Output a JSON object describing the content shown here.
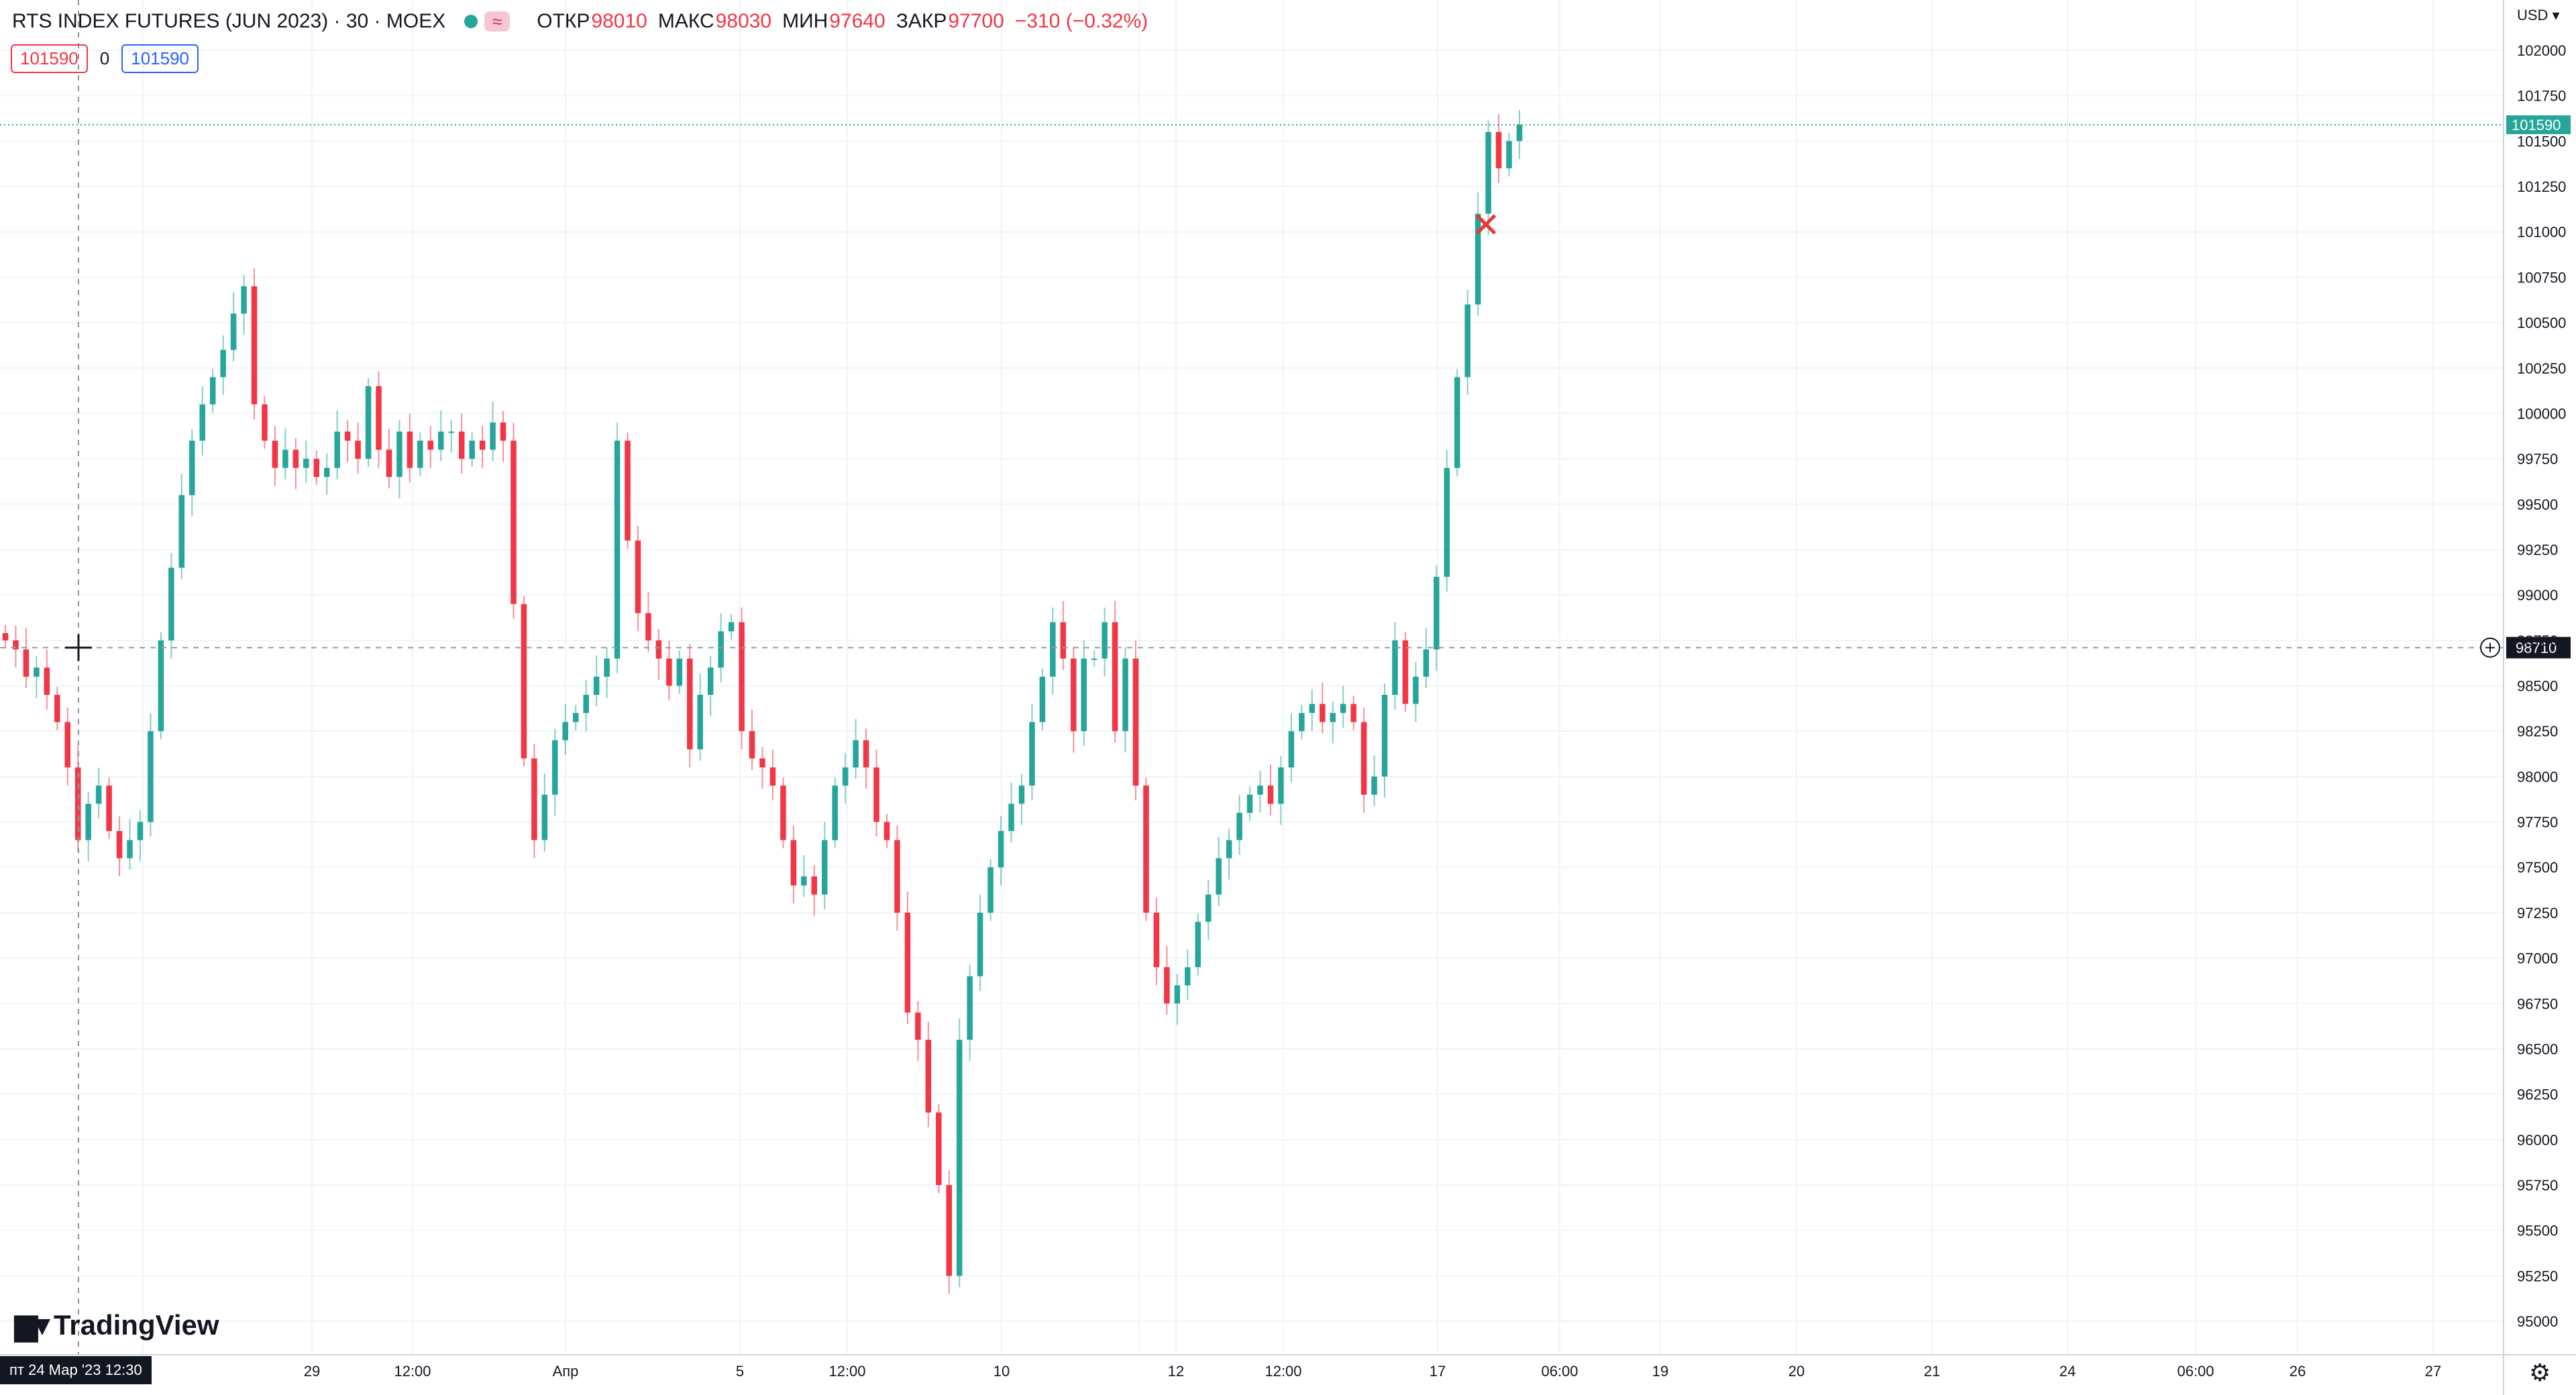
{
  "legend": {
    "symbol": "RTS INDEX FUTURES (JUN 2023) · 30 · MOEX",
    "wave_icon": "≈",
    "open_label": "ОТКР",
    "open": "98010",
    "high_label": "МАКС",
    "high": "98030",
    "low_label": "МИН",
    "low": "97640",
    "close_label": "ЗАКР",
    "close": "97700",
    "change": "−310 (−0.32%)"
  },
  "price_boxes": {
    "left": "101590",
    "middle": "0",
    "right": "101590"
  },
  "currency": "USD ▾",
  "logo_text": "TradingView",
  "crosshair_date": "пт 24 Мар '23   12:30",
  "gear_icon": "⚙",
  "colors": {
    "up": "#26a69a",
    "down": "#f23645",
    "grid": "#f0f3fa",
    "last_price": "#26a69a",
    "crosshair_label": "#131722"
  },
  "chart_data": {
    "type": "candlestick",
    "interval": "30",
    "y_axis_ticks": [
      95000,
      95250,
      95500,
      95750,
      96000,
      96250,
      96500,
      96750,
      97000,
      97250,
      97500,
      97750,
      98000,
      98250,
      98500,
      98750,
      99000,
      99250,
      99500,
      99750,
      100000,
      100250,
      100500,
      100750,
      101000,
      101250,
      101500,
      101750,
      102000
    ],
    "ylim": [
      94910,
      102150
    ],
    "x_axis_labels": [
      "29",
      "12:00",
      "Апр",
      "5",
      "12:00",
      "10",
      "12",
      "12:00",
      "17",
      "06:00",
      "19",
      "20",
      "21",
      "24",
      "06:00",
      "26",
      "27"
    ],
    "last_price": 101590,
    "crosshair_price": 98710,
    "marker": {
      "symbol": "✕",
      "price": 101030
    },
    "series": [
      {
        "name": "close",
        "values": [
          98750,
          98700,
          98550,
          98600,
          98450,
          98300,
          98050,
          97650,
          97850,
          97950,
          97700,
          97550,
          97650,
          97750,
          98250,
          98750,
          99150,
          99550,
          99850,
          100050,
          100200,
          100350,
          100550,
          100700,
          100050,
          99850,
          99700,
          99800,
          99700,
          99750,
          99650,
          99700,
          99900,
          99850,
          99750,
          100150,
          99800,
          99650,
          99900,
          99700,
          99850,
          99800,
          99900,
          99900,
          99750,
          99850,
          99800,
          99950,
          99850,
          98950,
          98100,
          97650,
          97900,
          98200,
          98300,
          98350,
          98450,
          98550,
          98650,
          99850,
          99300,
          98900,
          98750,
          98650,
          98500,
          98650,
          98150,
          98450,
          98600,
          98800,
          98850,
          98250,
          98100,
          98050,
          97950,
          97650,
          97400,
          97450,
          97350,
          97650,
          97950,
          98050,
          98200,
          98050,
          97750,
          97650,
          97250,
          96700,
          96550,
          96150,
          95750,
          95250,
          96550,
          96900,
          97250,
          97500,
          97700,
          97850,
          97950,
          98300,
          98550,
          98850,
          98650,
          98250,
          98650,
          98650,
          98850,
          98250,
          98650,
          97950,
          97250,
          96950,
          96750,
          96850,
          96950,
          97200,
          97350,
          97550,
          97650,
          97800,
          97900,
          97950,
          97850,
          98050,
          98250,
          98350,
          98400,
          98300,
          98350,
          98400,
          98300,
          97900,
          98000,
          98450,
          98750,
          98400,
          98550,
          98700,
          99100,
          99700,
          100200,
          100600,
          101100,
          101550,
          101350,
          101500,
          101590
        ]
      }
    ]
  }
}
